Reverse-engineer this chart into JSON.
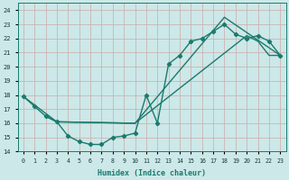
{
  "xlabel": "Humidex (Indice chaleur)",
  "bg_color": "#cce8e8",
  "grid_color": "#aacccc",
  "line_color": "#1a7a6e",
  "xlim": [
    -0.5,
    23.5
  ],
  "ylim": [
    14,
    24.5
  ],
  "yticks": [
    14,
    15,
    16,
    17,
    18,
    19,
    20,
    21,
    22,
    23,
    24
  ],
  "xticks": [
    0,
    1,
    2,
    3,
    4,
    5,
    6,
    7,
    8,
    9,
    10,
    11,
    12,
    13,
    14,
    15,
    16,
    17,
    18,
    19,
    20,
    21,
    22,
    23
  ],
  "line1_x": [
    0,
    1,
    2,
    3,
    4,
    5,
    6,
    7,
    8,
    9,
    10,
    11,
    12,
    13,
    14,
    15,
    16,
    17,
    18,
    19,
    20,
    21,
    22,
    23
  ],
  "line1_y": [
    17.9,
    17.2,
    16.5,
    16.1,
    15.1,
    14.7,
    14.5,
    14.5,
    15.0,
    15.1,
    15.3,
    18.0,
    16.0,
    20.2,
    20.8,
    21.8,
    22.0,
    22.5,
    23.0,
    22.3,
    22.0,
    22.2,
    21.8,
    20.8
  ],
  "line2_x": [
    0,
    3,
    10,
    18,
    23
  ],
  "line2_y": [
    17.9,
    16.1,
    16.0,
    23.5,
    20.8
  ],
  "line3_x": [
    2,
    3,
    10,
    20,
    21,
    22,
    23
  ],
  "line3_y": [
    16.5,
    16.1,
    16.0,
    22.2,
    21.8,
    20.8,
    20.8
  ]
}
